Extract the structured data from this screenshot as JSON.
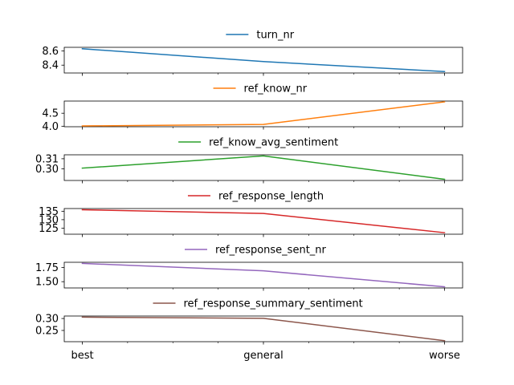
{
  "chart_data": {
    "type": "line",
    "x": [
      "best",
      "general",
      "worse"
    ],
    "subplots": [
      {
        "name": "turn_nr",
        "color": "#1f77b4",
        "values": [
          8.63,
          8.45,
          8.31
        ],
        "ylim": [
          8.29,
          8.65
        ],
        "yticks": [
          8.4,
          8.6
        ],
        "ytick_labels": [
          "8.4",
          "8.6"
        ],
        "legend": "top-center"
      },
      {
        "name": "ref_know_nr",
        "color": "#ff7f0e",
        "values": [
          4.01,
          4.07,
          4.94
        ],
        "ylim": [
          3.98,
          4.97
        ],
        "yticks": [
          4.0,
          4.5
        ],
        "ytick_labels": [
          "4.0",
          "4.5"
        ],
        "legend": "top-center"
      },
      {
        "name": "ref_know_avg_sentiment",
        "color": "#2ca02c",
        "values": [
          0.3007,
          0.3128,
          0.2897
        ],
        "ylim": [
          0.2885,
          0.3139
        ],
        "yticks": [
          0.3,
          0.31
        ],
        "ytick_labels": [
          "0.30",
          "0.31"
        ],
        "legend": "top-center"
      },
      {
        "name": "ref_response_length",
        "color": "#d62728",
        "values": [
          135.9,
          133.7,
          122.3
        ],
        "ylim": [
          121.4,
          136.6
        ],
        "yticks": [
          125,
          130,
          135
        ],
        "ytick_labels": [
          "125",
          "130",
          "135"
        ],
        "legend": "top-center"
      },
      {
        "name": "ref_response_sent_nr",
        "color": "#9467bd",
        "values": [
          1.82,
          1.69,
          1.41
        ],
        "ylim": [
          1.39,
          1.84
        ],
        "yticks": [
          1.5,
          1.75
        ],
        "ytick_labels": [
          "1.50",
          "1.75"
        ],
        "legend": "top-center"
      },
      {
        "name": "ref_response_summary_sentiment",
        "color": "#8c564b",
        "values": [
          0.3056,
          0.3009,
          0.2071
        ],
        "ylim": [
          0.2029,
          0.3104
        ],
        "yticks": [
          0.25,
          0.3
        ],
        "ytick_labels": [
          "0.25",
          "0.30"
        ],
        "legend": "top-center"
      }
    ],
    "grid": false
  }
}
